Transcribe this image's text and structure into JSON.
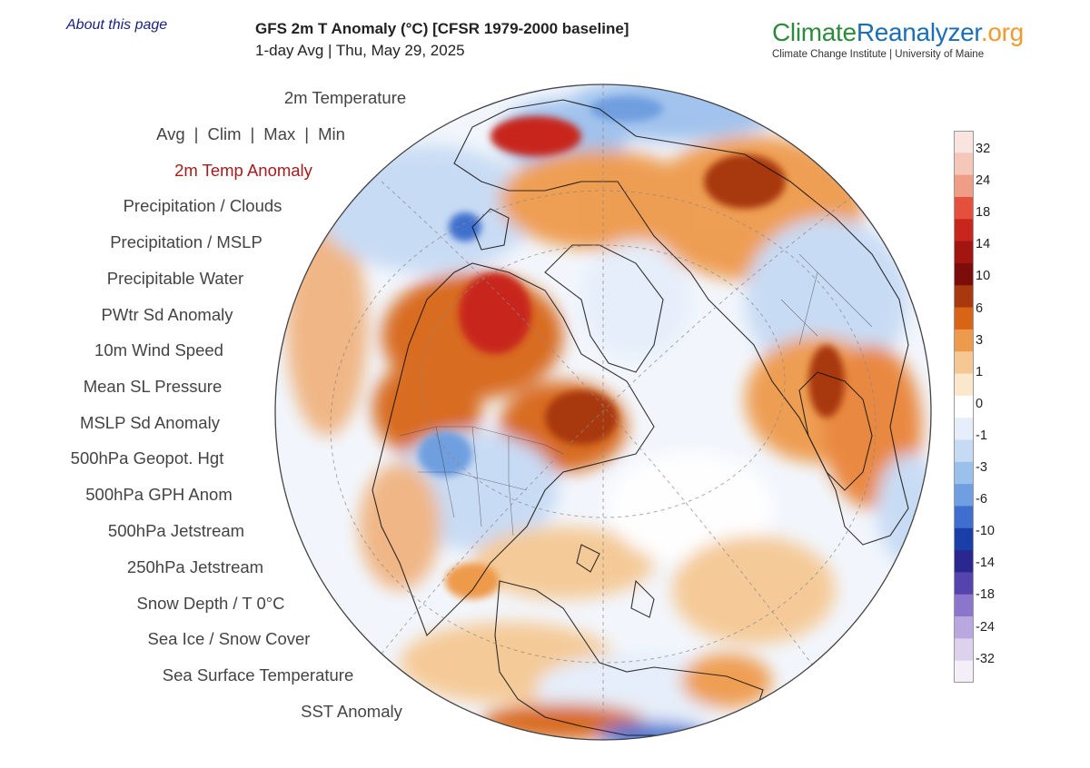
{
  "header": {
    "about_link": "About this page",
    "title": "GFS 2m T Anomaly (°C) [CFSR 1979-2000 baseline]",
    "subtitle": "1-day Avg | Thu, May 29, 2025"
  },
  "brand": {
    "name_part1": "Climate",
    "name_part2": "Reanalyzer",
    "name_part3": ".org",
    "tagline": "Climate Change Institute | University of Maine"
  },
  "menu": {
    "temperature": "2m Temperature",
    "stats": [
      "Avg",
      "Clim",
      "Max",
      "Min"
    ],
    "stat_separator": "|",
    "anomaly_active": "2m Temp Anomaly",
    "items": [
      "Precipitation / Clouds",
      "Precipitation / MSLP",
      "Precipitable Water",
      "PWtr Sd Anomaly",
      "10m Wind Speed",
      "Mean SL Pressure",
      "MSLP Sd Anomaly",
      "500hPa Geopot. Hgt",
      "500hPa GPH Anom",
      "500hPa Jetstream",
      "250hPa Jetstream",
      "Snow Depth / T 0°C",
      "Sea Ice / Snow Cover",
      "Sea Surface Temperature",
      "SST Anomaly"
    ]
  },
  "legend": {
    "labels": [
      "32",
      "24",
      "18",
      "14",
      "10",
      "6",
      "3",
      "1",
      "0",
      "-1",
      "-3",
      "-6",
      "-10",
      "-14",
      "-18",
      "-24",
      "-32"
    ],
    "colors": [
      "#f9e4df",
      "#f4c7b8",
      "#ef9d86",
      "#e4503b",
      "#c8261c",
      "#a31510",
      "#7c0d0a",
      "#a8390e",
      "#d76515",
      "#ee9a4c",
      "#f5c893",
      "#fbe8cc",
      "#ffffff",
      "#e5eefa",
      "#c6daf4",
      "#9cc0ec",
      "#6f9fe0",
      "#3f6fce",
      "#1a3fa8",
      "#2a2890",
      "#5544ae",
      "#8a76cb",
      "#b9a8e0",
      "#ddd2ee",
      "#f4eef8"
    ],
    "ocean_color": "#f2f6fc",
    "land_outline_color": "#111111"
  },
  "map": {
    "projection": "orthographic",
    "view": "Northern Hemisphere, centered on North Atlantic",
    "variable": "2m temperature anomaly"
  }
}
